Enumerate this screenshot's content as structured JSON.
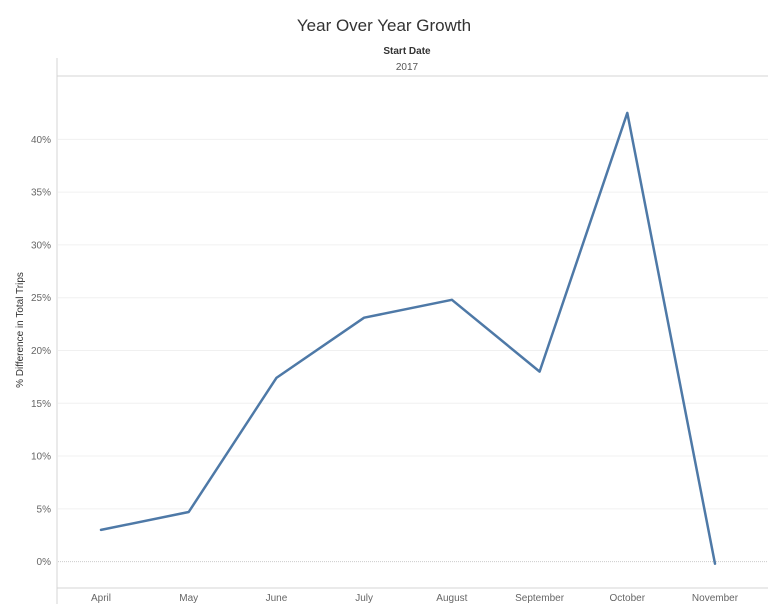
{
  "chart_data": {
    "type": "line",
    "title": "Year Over Year Growth",
    "column_header": {
      "title": "Start Date",
      "value": "2017"
    },
    "xlabel": "",
    "ylabel": "% Difference in Total Trips",
    "categories": [
      "April",
      "May",
      "June",
      "July",
      "August",
      "September",
      "October",
      "November"
    ],
    "series": [
      {
        "values": [
          3.0,
          4.7,
          17.4,
          23.1,
          24.8,
          18.0,
          42.5,
          -0.2
        ],
        "color": "#4e79a7"
      }
    ],
    "ylim": [
      -2.5,
      46.0
    ],
    "yticks": [
      0,
      5,
      10,
      15,
      20,
      25,
      30,
      35,
      40
    ],
    "ytick_labels": [
      "0%",
      "5%",
      "10%",
      "15%",
      "20%",
      "25%",
      "30%",
      "35%",
      "40%"
    ],
    "grid": true,
    "legend": "none"
  }
}
